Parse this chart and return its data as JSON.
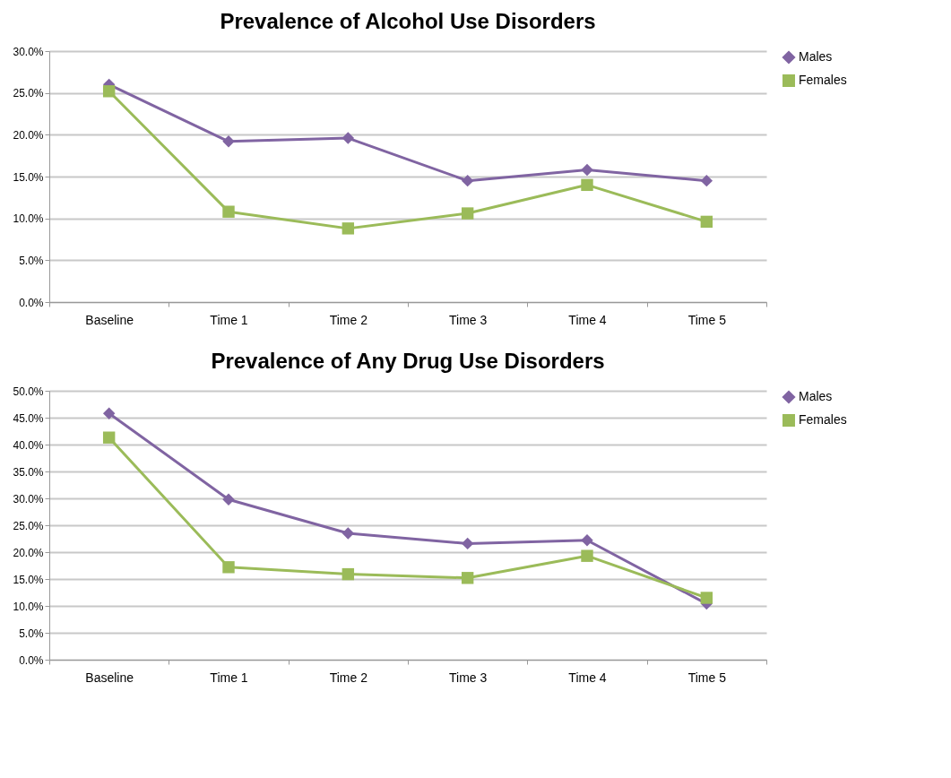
{
  "chart_data": [
    {
      "type": "line",
      "title": "Prevalence of Alcohol Use Disorders",
      "categories": [
        "Baseline",
        "Time 1",
        "Time 2",
        "Time 3",
        "Time 4",
        "Time 5"
      ],
      "series": [
        {
          "name": "Males",
          "color": "#8064a2",
          "marker": "diamond",
          "values": [
            26.0,
            19.2,
            19.6,
            14.5,
            15.8,
            14.5
          ]
        },
        {
          "name": "Females",
          "color": "#9bbb59",
          "marker": "square",
          "values": [
            25.2,
            10.8,
            8.8,
            10.6,
            14.0,
            9.6
          ]
        }
      ],
      "ylim": [
        0,
        30
      ],
      "yticks": [
        {
          "value": 0,
          "label": "0.0%"
        },
        {
          "value": 5,
          "label": "5.0%"
        },
        {
          "value": 10,
          "label": "10.0%"
        },
        {
          "value": 15,
          "label": "15.0%"
        },
        {
          "value": 20,
          "label": "20.0%"
        },
        {
          "value": 25,
          "label": "25.0%"
        },
        {
          "value": 30,
          "label": "30.0%"
        }
      ],
      "grid": "y",
      "legend": "right"
    },
    {
      "type": "line",
      "title": "Prevalence of Any Drug Use Disorders",
      "categories": [
        "Baseline",
        "Time 1",
        "Time 2",
        "Time 3",
        "Time 4",
        "Time 5"
      ],
      "series": [
        {
          "name": "Males",
          "color": "#8064a2",
          "marker": "diamond",
          "values": [
            45.8,
            29.8,
            23.5,
            21.6,
            22.2,
            10.4
          ]
        },
        {
          "name": "Females",
          "color": "#9bbb59",
          "marker": "square",
          "values": [
            41.3,
            17.2,
            15.9,
            15.2,
            19.3,
            11.5
          ]
        }
      ],
      "ylim": [
        0,
        50
      ],
      "yticks": [
        {
          "value": 0,
          "label": "0.0%"
        },
        {
          "value": 5,
          "label": "5.0%"
        },
        {
          "value": 10,
          "label": "10.0%"
        },
        {
          "value": 15,
          "label": "15.0%"
        },
        {
          "value": 20,
          "label": "20.0%"
        },
        {
          "value": 25,
          "label": "25.0%"
        },
        {
          "value": 30,
          "label": "30.0%"
        },
        {
          "value": 35,
          "label": "35.0%"
        },
        {
          "value": 40,
          "label": "40.0%"
        },
        {
          "value": 45,
          "label": "45.0%"
        },
        {
          "value": 50,
          "label": "50.0%"
        }
      ],
      "grid": "y",
      "legend": "right"
    }
  ]
}
